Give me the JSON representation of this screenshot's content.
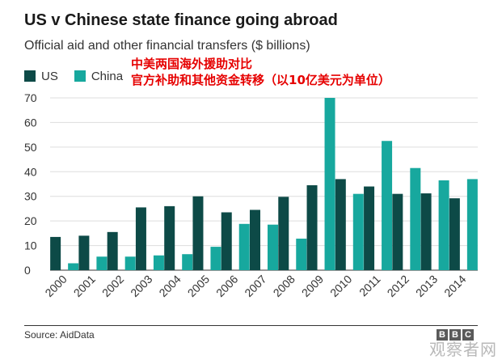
{
  "chart_data": {
    "type": "bar",
    "title": "US v Chinese state finance going abroad",
    "subtitle": "Official aid and other financial transfers ($ billions)",
    "annotation_lines": [
      "中美两国海外援助对比",
      "官方补助和其他资金转移（以10亿美元为单位）"
    ],
    "categories": [
      "2000",
      "2001",
      "2002",
      "2003",
      "2004",
      "2005",
      "2006",
      "2007",
      "2008",
      "2009",
      "2010",
      "2011",
      "2012",
      "2013",
      "2014"
    ],
    "series": [
      {
        "name": "US",
        "color": "#0d4a47",
        "values": [
          13.5,
          14,
          15.5,
          25.5,
          26,
          30,
          23.5,
          24.5,
          29.8,
          34.5,
          37,
          34,
          31,
          31.2,
          29.2
        ]
      },
      {
        "name": "China",
        "color": "#17a89e",
        "values": [
          2.8,
          5.5,
          5.5,
          6,
          6.5,
          9.5,
          18.8,
          18.5,
          12.8,
          70,
          31,
          52.5,
          41.5,
          36.5,
          37
        ]
      }
    ],
    "ylim": [
      0,
      70
    ],
    "yticks": [
      0,
      10,
      20,
      30,
      40,
      50,
      60,
      70
    ],
    "grid": true,
    "legend": "top-left"
  },
  "footer": {
    "source": "Source: AidData",
    "logo": [
      "B",
      "B",
      "C"
    ],
    "watermark": "观察者网"
  }
}
